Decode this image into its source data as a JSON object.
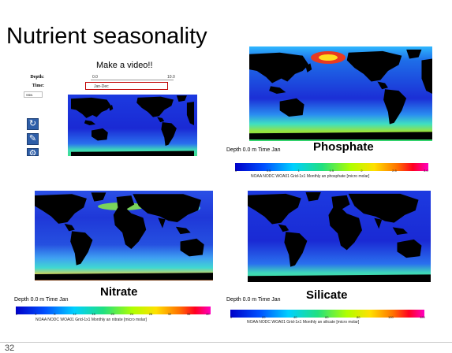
{
  "slide": {
    "title": "Nutrient seasonality",
    "video_caption": "Make a video!!",
    "page_number": "32"
  },
  "controls": {
    "depth_label": "Depth:",
    "time_label": "Time:",
    "depth_min": "0.0",
    "depth_max": "10.0",
    "time_value": "Jan-Dec",
    "season_value": "SSN"
  },
  "panels": {
    "phosphate": {
      "label": "Phosphate",
      "caption": "Depth 0.0 m Time Jan",
      "colorbar_title": "NOAA NODC WOA01 Grid-1x1 Monthly an phosphate [micro molar]",
      "ticks": [
        "0",
        "0.5",
        "1",
        "1.5",
        "2",
        "2.5",
        "3.0"
      ]
    },
    "nitrate": {
      "label": "Nitrate",
      "caption": "Depth 0.0 m Time Jan",
      "colorbar_title": "NOAA NODC WOA01 Grid-1x1 Monthly an nitrate [micro molar]",
      "ticks": [
        "0",
        "4",
        "8",
        "12",
        "16",
        "20",
        "24",
        "28",
        "32",
        "36",
        "40"
      ]
    },
    "silicate": {
      "label": "Silicate",
      "caption": "Depth 0.0 m Time Jan",
      "colorbar_title": "NOAA NODC WOA01 Grid-1x1 Monthly an silicate [micro molar]",
      "ticks": [
        "0",
        "20",
        "40",
        "60",
        "80",
        "100",
        "120"
      ]
    }
  },
  "icons": [
    "refresh-icon",
    "edit-icon",
    "settings-icon"
  ]
}
